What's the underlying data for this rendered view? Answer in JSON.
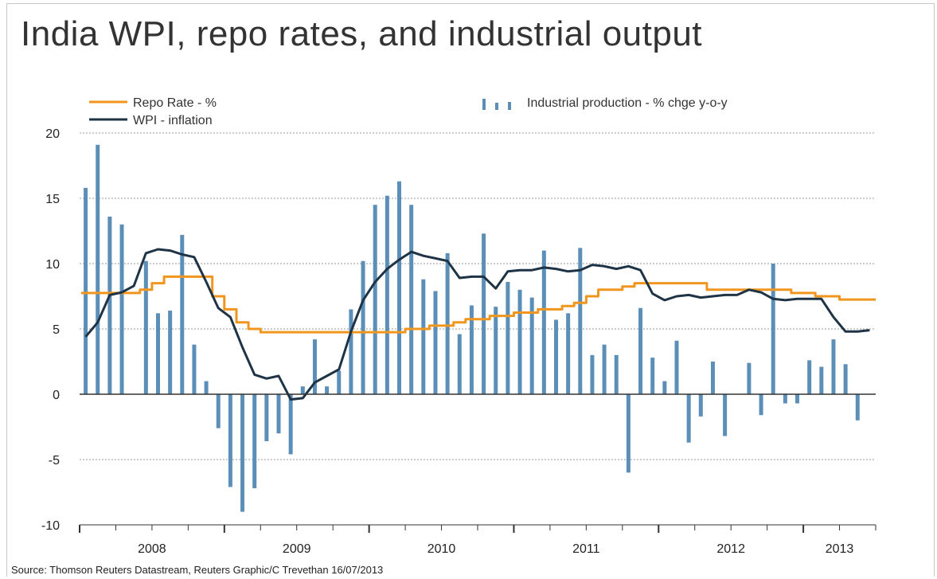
{
  "title": "India WPI, repo rates, and industrial output",
  "source": "Source: Thomson Reuters Datastream, Reuters Graphic/C Trevethan 16/07/2013",
  "colors": {
    "repo": "#f0961e",
    "wpi": "#1e3446",
    "bars": "#5b8fb8",
    "grid": "#9a9a9a",
    "axis": "#333333"
  },
  "chart_data": {
    "type": "bar",
    "title": "India WPI, repo rates, and industrial output",
    "xlabel": "",
    "ylabel": "",
    "ylim": [
      -10,
      20
    ],
    "yticks": [
      20,
      15,
      10,
      5,
      0,
      -5,
      -10
    ],
    "grid": true,
    "legend": "top",
    "legend_entries": {
      "repo": "Repo Rate - %",
      "wpi": "WPI - inflation",
      "bars": "Industrial production - % chge y-o-y"
    },
    "year_labels": [
      "2008",
      "2009",
      "2010",
      "2011",
      "2012",
      "2013"
    ],
    "x_start": "2008-01",
    "months": 66,
    "series": [
      {
        "name": "Industrial production - % chge y-o-y",
        "kind": "bar",
        "values": [
          15.8,
          19.1,
          13.6,
          13.0,
          null,
          10.2,
          6.2,
          6.4,
          12.2,
          3.8,
          1.0,
          -2.6,
          -7.1,
          -9.0,
          -7.2,
          -3.6,
          -3.0,
          -4.6,
          0.6,
          4.2,
          0.6,
          1.8,
          6.5,
          10.2,
          14.5,
          15.2,
          16.3,
          14.5,
          8.8,
          7.9,
          10.8,
          4.6,
          6.8,
          12.3,
          6.7,
          8.6,
          8.0,
          7.4,
          11.0,
          5.7,
          6.2,
          11.2,
          3.0,
          3.8,
          3.0,
          -6.0,
          6.6,
          2.8,
          1.0,
          4.1,
          -3.7,
          -1.7,
          2.5,
          -3.2,
          null,
          2.4,
          -1.6,
          10.0,
          -0.7,
          -0.7,
          2.6,
          2.1,
          4.2,
          2.3,
          -2.0,
          null
        ]
      },
      {
        "name": "Repo Rate - %",
        "kind": "line",
        "values": [
          7.75,
          7.75,
          7.75,
          7.75,
          7.75,
          8.0,
          8.5,
          9.0,
          9.0,
          9.0,
          9.0,
          7.5,
          6.5,
          5.5,
          5.0,
          4.75,
          4.75,
          4.75,
          4.75,
          4.75,
          4.75,
          4.75,
          4.75,
          4.75,
          4.75,
          4.75,
          4.75,
          5.0,
          5.0,
          5.25,
          5.25,
          5.5,
          5.75,
          5.75,
          6.0,
          6.0,
          6.25,
          6.25,
          6.5,
          6.5,
          6.75,
          7.0,
          7.5,
          8.0,
          8.0,
          8.25,
          8.5,
          8.5,
          8.5,
          8.5,
          8.5,
          8.5,
          8.0,
          8.0,
          8.0,
          8.0,
          8.0,
          8.0,
          8.0,
          7.75,
          7.75,
          7.5,
          7.5,
          7.25,
          7.25,
          7.25
        ]
      },
      {
        "name": "WPI - inflation",
        "kind": "line",
        "values": [
          4.4,
          5.5,
          7.6,
          7.8,
          8.3,
          10.8,
          11.1,
          11.0,
          10.7,
          10.5,
          8.6,
          6.6,
          5.9,
          3.6,
          1.5,
          1.2,
          1.4,
          -0.4,
          -0.3,
          0.9,
          1.4,
          1.9,
          4.8,
          7.2,
          8.6,
          9.6,
          10.3,
          10.9,
          10.6,
          10.4,
          10.2,
          8.9,
          9.0,
          9.0,
          8.1,
          9.4,
          9.5,
          9.5,
          9.7,
          9.6,
          9.4,
          9.5,
          9.9,
          9.8,
          9.6,
          9.8,
          9.5,
          7.7,
          7.2,
          7.5,
          7.6,
          7.4,
          7.5,
          7.6,
          7.6,
          8.0,
          7.8,
          7.3,
          7.2,
          7.3,
          7.3,
          7.3,
          5.9,
          4.8,
          4.8,
          4.9
        ]
      }
    ]
  }
}
